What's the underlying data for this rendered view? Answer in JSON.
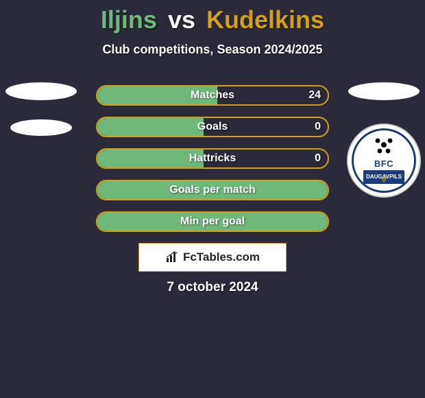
{
  "colors": {
    "bg": "#2a2a3a",
    "player1_accent": "#6fb87a",
    "player2_accent": "#d4a017",
    "text_light": "#ffffff",
    "subtitle": "#ffffff",
    "badge_navy": "#1a3d7a"
  },
  "title": {
    "player1": "Iljins",
    "vs": "vs",
    "player2": "Kudelkins"
  },
  "subtitle": "Club competitions, Season 2024/2025",
  "stats": [
    {
      "label": "Matches",
      "value_right": "24",
      "fill_pct": 52
    },
    {
      "label": "Goals",
      "value_right": "0",
      "fill_pct": 46
    },
    {
      "label": "Hattricks",
      "value_right": "0",
      "fill_pct": 46
    },
    {
      "label": "Goals per match",
      "value_right": "",
      "fill_pct": 100
    },
    {
      "label": "Min per goal",
      "value_right": "",
      "fill_pct": 100
    }
  ],
  "right_badge": {
    "top_text": "BFC",
    "mid_text": "DAUGAVPILS"
  },
  "site_label": "FcTables.com",
  "date": "7 october 2024"
}
